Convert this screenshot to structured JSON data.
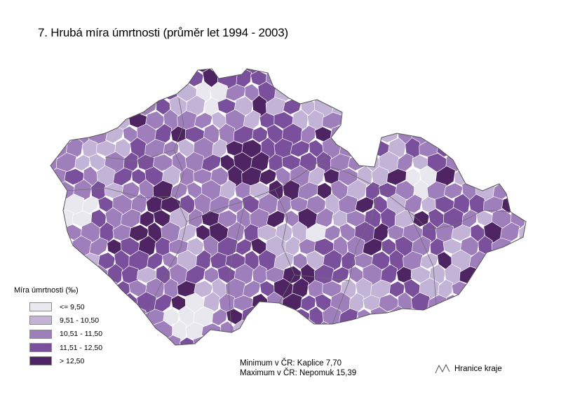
{
  "title": "7. Hrubá míra úmrtnosti (průměr let 1994 - 2003)",
  "legend": {
    "title": "Míra úmrtnosti (‰)",
    "classes": [
      {
        "label": "<= 9,50",
        "color": "#e8e8ee"
      },
      {
        "label": "9,51 - 10,50",
        "color": "#c3b3d6"
      },
      {
        "label": "10,51 - 11,50",
        "color": "#9f7fbb"
      },
      {
        "label": "11,51 - 12,50",
        "color": "#7a4f9c"
      },
      {
        "label": "> 12,50",
        "color": "#4e2463"
      }
    ]
  },
  "stats": {
    "minimum": "Minimum v ČR: Kaplice 7,70",
    "maximum": "Maximum v ČR: Nepomuk 15,39"
  },
  "border_legend": {
    "label": "Hranice kraje",
    "icon": "zigzag-line-icon"
  },
  "colors": {
    "district_border": "#ffffff",
    "region_border": "#6e6e6e"
  }
}
